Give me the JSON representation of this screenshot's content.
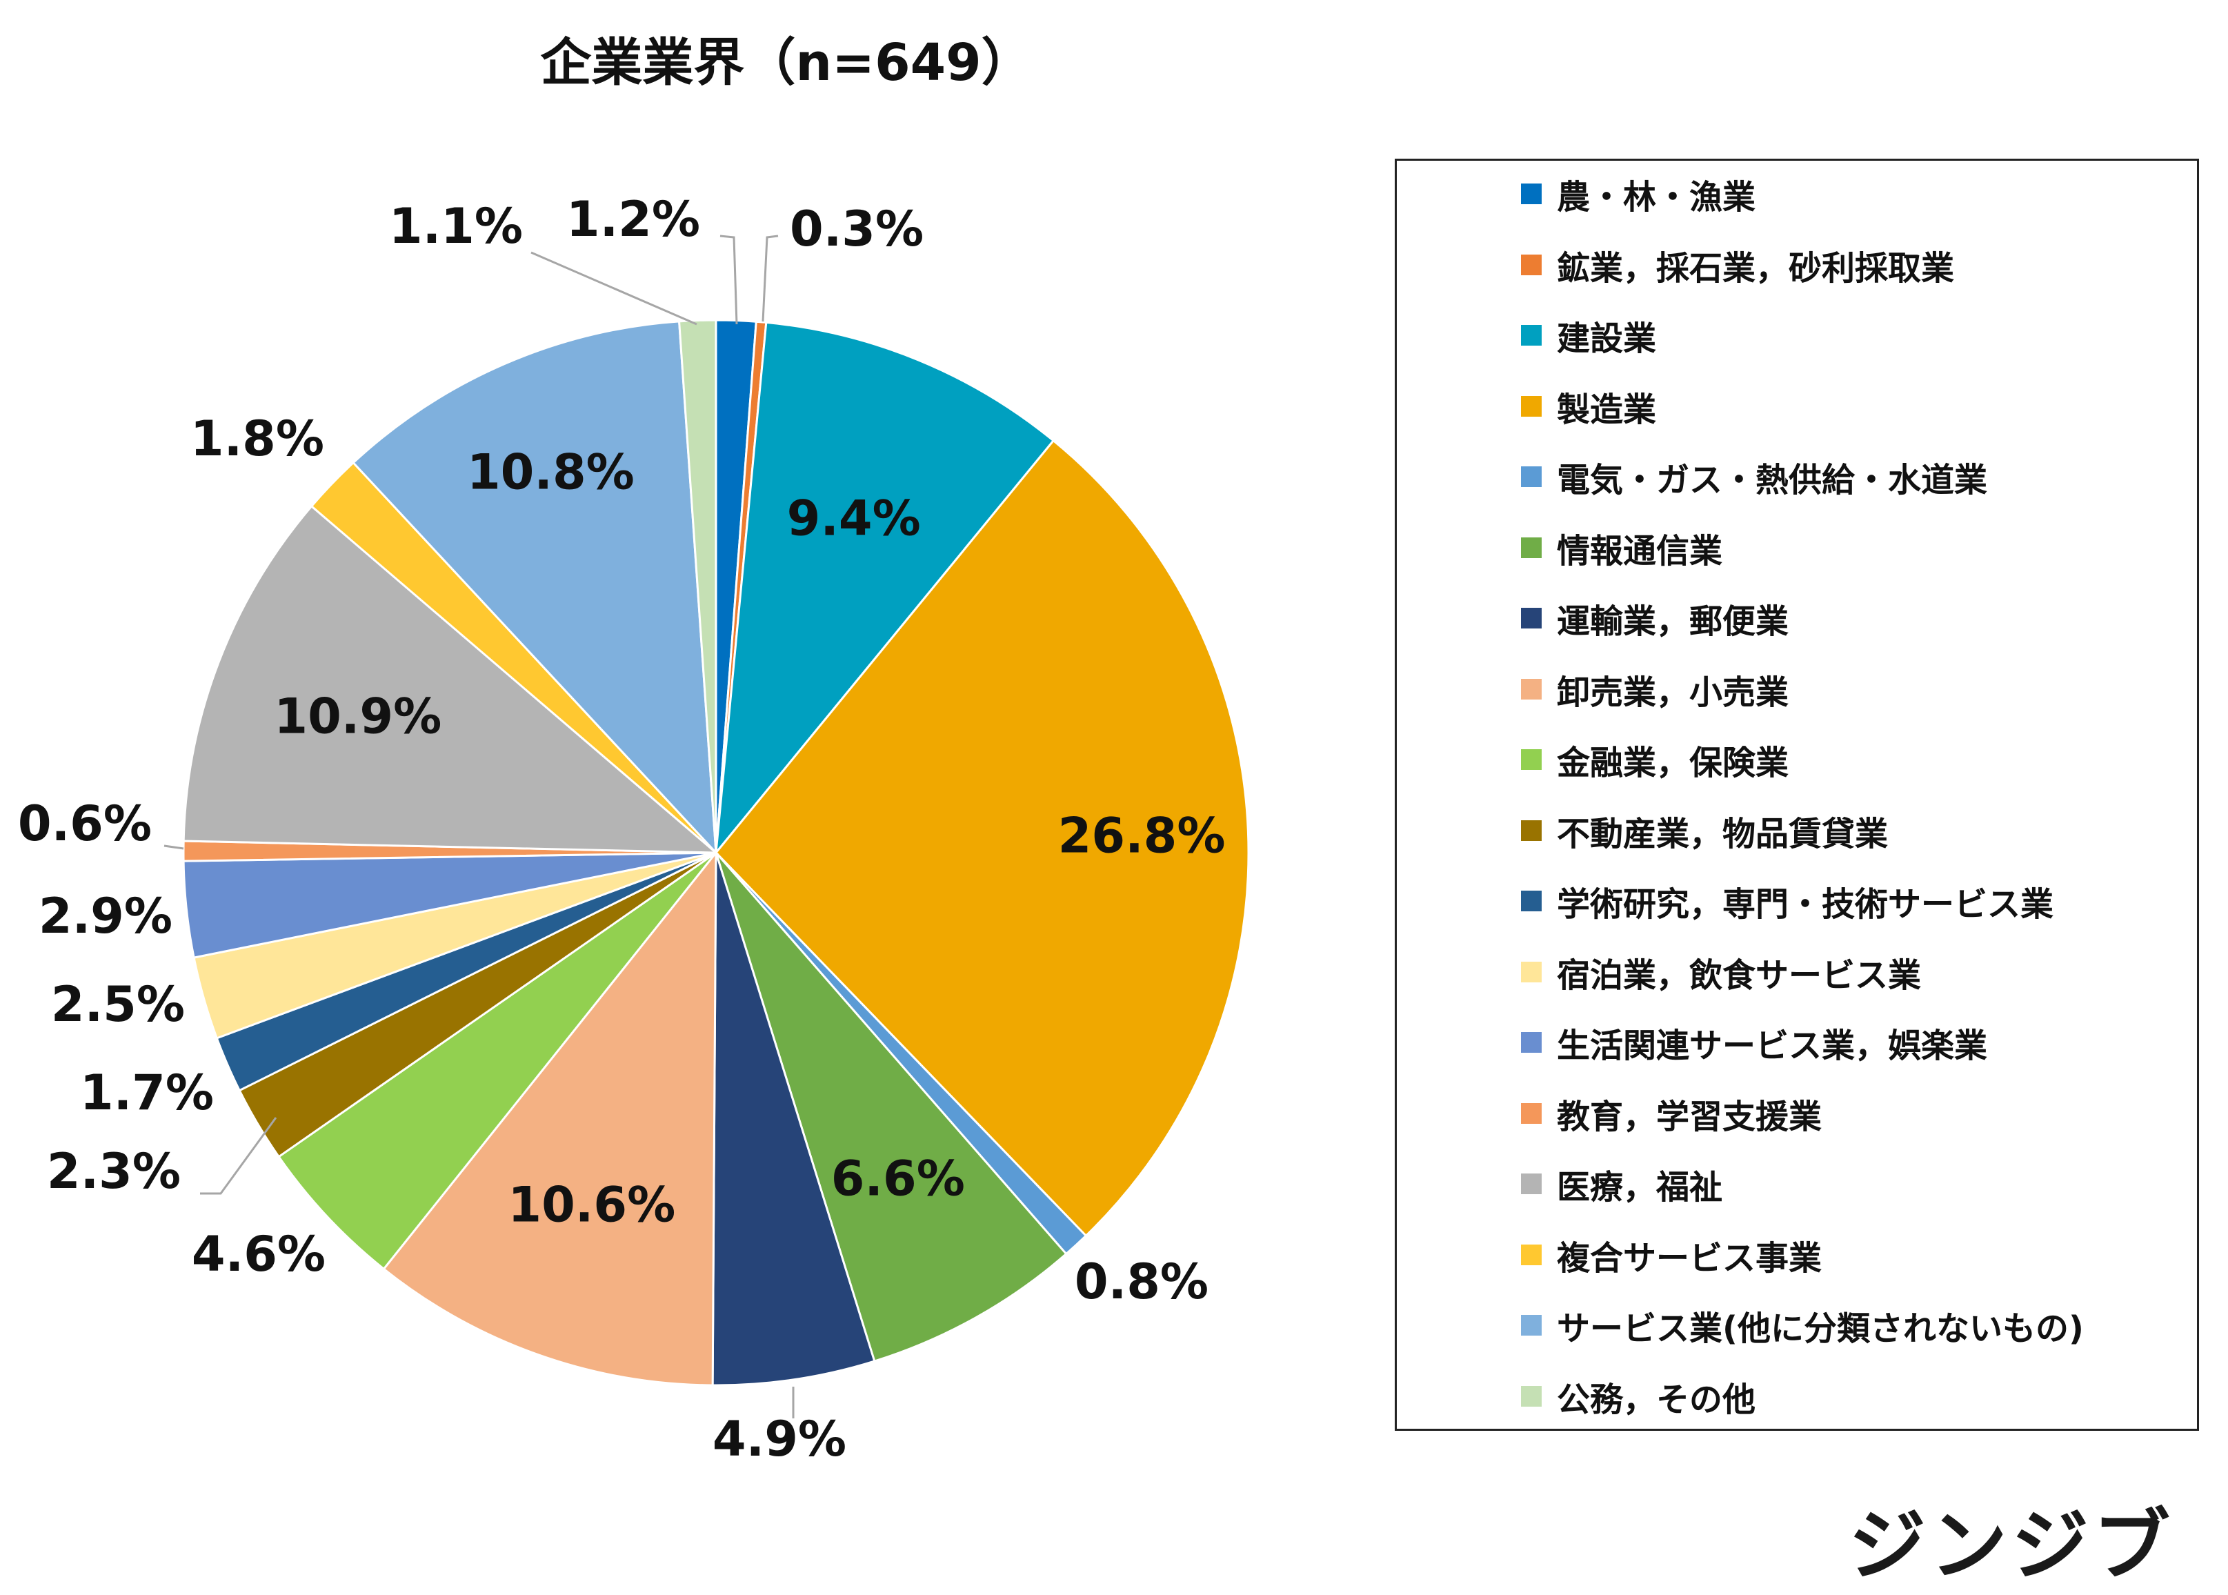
{
  "chart_data": {
    "type": "pie",
    "title": "企業業界（n=649）",
    "slices": [
      {
        "label": "農・林・漁業",
        "value": 1.2,
        "value_label": "1.2%",
        "color": "#0070C0"
      },
      {
        "label": "鉱業，採石業，砂利採取業",
        "value": 0.3,
        "value_label": "0.3%",
        "color": "#ED7D31"
      },
      {
        "label": "建設業",
        "value": 9.4,
        "value_label": "9.4%",
        "color": "#00A0C0"
      },
      {
        "label": "製造業",
        "value": 26.8,
        "value_label": "26.8%",
        "color": "#F0A800"
      },
      {
        "label": "電気・ガス・熱供給・水道業",
        "value": 0.8,
        "value_label": "0.8%",
        "color": "#5B9BD5"
      },
      {
        "label": "情報通信業",
        "value": 6.6,
        "value_label": "6.6%",
        "color": "#70AD47"
      },
      {
        "label": "運輸業，郵便業",
        "value": 4.9,
        "value_label": "4.9%",
        "color": "#264478"
      },
      {
        "label": "卸売業，小売業",
        "value": 10.6,
        "value_label": "10.6%",
        "color": "#F4B183"
      },
      {
        "label": "金融業，保険業",
        "value": 4.6,
        "value_label": "4.6%",
        "color": "#92D050"
      },
      {
        "label": "不動産業，物品賃貸業",
        "value": 2.3,
        "value_label": "2.3%",
        "color": "#997300"
      },
      {
        "label": "学術研究，専門・技術サービス業",
        "value": 1.7,
        "value_label": "1.7%",
        "color": "#255E91"
      },
      {
        "label": "宿泊業，飲食サービス業",
        "value": 2.5,
        "value_label": "2.5%",
        "color": "#FFE699"
      },
      {
        "label": "生活関連サービス業，娯楽業",
        "value": 2.9,
        "value_label": "2.9%",
        "color": "#698ED0"
      },
      {
        "label": "教育，学習支援業",
        "value": 0.6,
        "value_label": "0.6%",
        "color": "#F4975A"
      },
      {
        "label": "医療，福祉",
        "value": 10.9,
        "value_label": "10.9%",
        "color": "#B4B4B4"
      },
      {
        "label": "複合サービス事業",
        "value": 1.8,
        "value_label": "1.8%",
        "color": "#FFC830"
      },
      {
        "label": "サービス業(他に分類されないもの)",
        "value": 10.8,
        "value_label": "10.8%",
        "color": "#7FB0DD"
      },
      {
        "label": "公務，その他",
        "value": 1.1,
        "value_label": "1.1%",
        "color": "#C5E0B4"
      }
    ],
    "legend_position": "right"
  },
  "brand": "ジンジブ"
}
